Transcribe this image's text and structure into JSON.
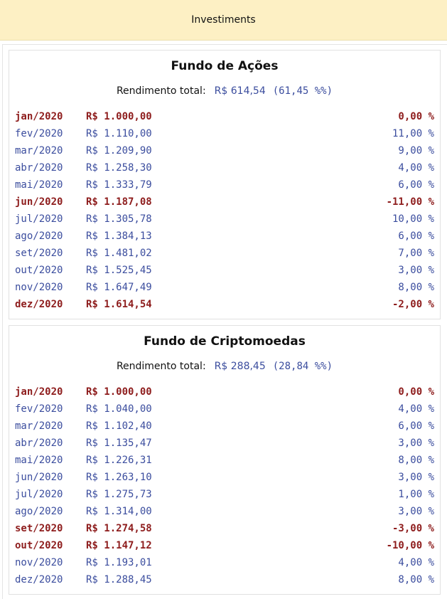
{
  "header": {
    "title": "Investiments"
  },
  "total_label": "Rendimento total:",
  "funds": [
    {
      "name": "Fundo de Ações",
      "total_value": "R$ 614,54",
      "total_pct": "(61,45 %%)",
      "rows": [
        {
          "month": "jan/2020",
          "value": "R$ 1.000,00",
          "pct": "0,00 %",
          "highlight": true
        },
        {
          "month": "fev/2020",
          "value": "R$ 1.110,00",
          "pct": "11,00 %",
          "highlight": false
        },
        {
          "month": "mar/2020",
          "value": "R$ 1.209,90",
          "pct": "9,00 %",
          "highlight": false
        },
        {
          "month": "abr/2020",
          "value": "R$ 1.258,30",
          "pct": "4,00 %",
          "highlight": false
        },
        {
          "month": "mai/2020",
          "value": "R$ 1.333,79",
          "pct": "6,00 %",
          "highlight": false
        },
        {
          "month": "jun/2020",
          "value": "R$ 1.187,08",
          "pct": "-11,00 %",
          "highlight": true
        },
        {
          "month": "jul/2020",
          "value": "R$ 1.305,78",
          "pct": "10,00 %",
          "highlight": false
        },
        {
          "month": "ago/2020",
          "value": "R$ 1.384,13",
          "pct": "6,00 %",
          "highlight": false
        },
        {
          "month": "set/2020",
          "value": "R$ 1.481,02",
          "pct": "7,00 %",
          "highlight": false
        },
        {
          "month": "out/2020",
          "value": "R$ 1.525,45",
          "pct": "3,00 %",
          "highlight": false
        },
        {
          "month": "nov/2020",
          "value": "R$ 1.647,49",
          "pct": "8,00 %",
          "highlight": false
        },
        {
          "month": "dez/2020",
          "value": "R$ 1.614,54",
          "pct": "-2,00 %",
          "highlight": true
        }
      ]
    },
    {
      "name": "Fundo de Criptomoedas",
      "total_value": "R$ 288,45",
      "total_pct": "(28,84 %%)",
      "rows": [
        {
          "month": "jan/2020",
          "value": "R$ 1.000,00",
          "pct": "0,00 %",
          "highlight": true
        },
        {
          "month": "fev/2020",
          "value": "R$ 1.040,00",
          "pct": "4,00 %",
          "highlight": false
        },
        {
          "month": "mar/2020",
          "value": "R$ 1.102,40",
          "pct": "6,00 %",
          "highlight": false
        },
        {
          "month": "abr/2020",
          "value": "R$ 1.135,47",
          "pct": "3,00 %",
          "highlight": false
        },
        {
          "month": "mai/2020",
          "value": "R$ 1.226,31",
          "pct": "8,00 %",
          "highlight": false
        },
        {
          "month": "jun/2020",
          "value": "R$ 1.263,10",
          "pct": "3,00 %",
          "highlight": false
        },
        {
          "month": "jul/2020",
          "value": "R$ 1.275,73",
          "pct": "1,00 %",
          "highlight": false
        },
        {
          "month": "ago/2020",
          "value": "R$ 1.314,00",
          "pct": "3,00 %",
          "highlight": false
        },
        {
          "month": "set/2020",
          "value": "R$ 1.274,58",
          "pct": "-3,00 %",
          "highlight": true
        },
        {
          "month": "out/2020",
          "value": "R$ 1.147,12",
          "pct": "-10,00 %",
          "highlight": true
        },
        {
          "month": "nov/2020",
          "value": "R$ 1.193,01",
          "pct": "4,00 %",
          "highlight": false
        },
        {
          "month": "dez/2020",
          "value": "R$ 1.288,45",
          "pct": "8,00 %",
          "highlight": false
        }
      ]
    }
  ],
  "colors": {
    "header_bg": "#fdf0c4",
    "positive_text": "#3b4d9e",
    "negative_text": "#8e1d1d"
  }
}
